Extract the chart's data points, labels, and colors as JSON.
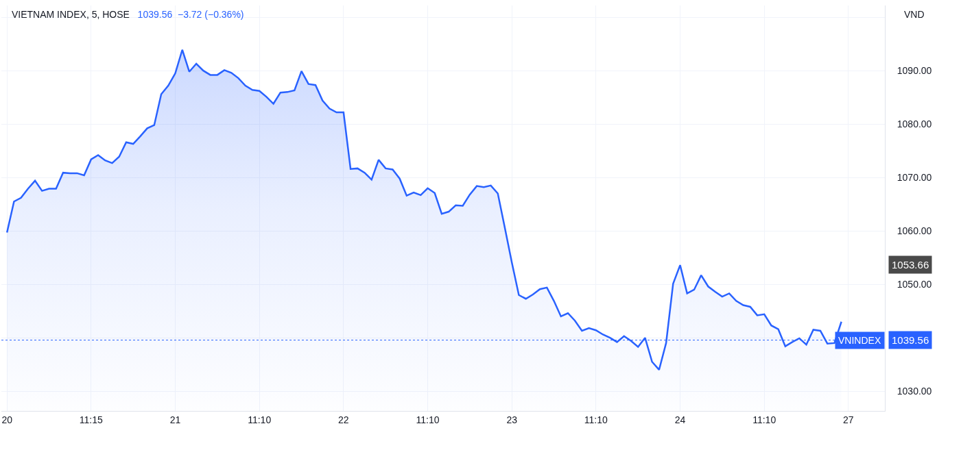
{
  "chart_data": {
    "type": "area",
    "title": "VIETNAM INDEX, 5, HOSE",
    "subtitle": "1039.56  −3.72 (−0.36%)",
    "ylabel": "VND",
    "categories": [
      "20",
      null,
      null,
      null,
      null,
      null,
      null,
      null,
      null,
      null,
      null,
      null,
      "11:15",
      null,
      null,
      null,
      null,
      null,
      null,
      null,
      null,
      null,
      null,
      null,
      "21",
      null,
      null,
      null,
      null,
      null,
      null,
      null,
      null,
      null,
      null,
      null,
      "11:10",
      null,
      null,
      null,
      null,
      null,
      null,
      null,
      null,
      null,
      null,
      null,
      "22",
      null,
      null,
      null,
      null,
      null,
      null,
      null,
      null,
      null,
      null,
      null,
      "11:10",
      null,
      null,
      null,
      null,
      null,
      null,
      null,
      null,
      null,
      null,
      null,
      "23",
      null,
      null,
      null,
      null,
      null,
      null,
      null,
      null,
      null,
      null,
      null,
      "11:10",
      null,
      null,
      null,
      null,
      null,
      null,
      null,
      null,
      null,
      null,
      null,
      "24",
      null,
      null,
      null,
      null,
      null,
      null,
      null,
      null,
      null,
      null,
      null,
      "11:10",
      null,
      null,
      null,
      null,
      null,
      null,
      null,
      null,
      null,
      null,
      null,
      "27"
    ],
    "series": [
      {
        "name": "VNINDEX",
        "color": "#2962ff",
        "values": [
          1059.7,
          1065.5,
          1066.2,
          1067.9,
          1069.4,
          1067.5,
          1067.9,
          1067.9,
          1070.9,
          1070.8,
          1070.8,
          1070.4,
          1073.4,
          1074.2,
          1073.2,
          1072.7,
          1073.9,
          1076.6,
          1076.3,
          1077.7,
          1079.2,
          1079.8,
          1085.6,
          1087.2,
          1089.5,
          1093.9,
          1089.8,
          1091.3,
          1090.0,
          1089.2,
          1089.2,
          1090.1,
          1089.6,
          1088.6,
          1087.2,
          1086.4,
          1086.2,
          1085.1,
          1083.8,
          1085.9,
          1086.0,
          1086.3,
          1089.9,
          1087.5,
          1087.3,
          1084.4,
          1082.9,
          1082.2,
          1082.2,
          1071.6,
          1071.7,
          1070.9,
          1069.6,
          1073.3,
          1071.7,
          1071.5,
          1069.8,
          1066.6,
          1067.2,
          1066.7,
          1068.0,
          1067.1,
          1063.2,
          1063.6,
          1064.8,
          1064.7,
          1066.8,
          1068.4,
          1068.2,
          1068.5,
          1067.0,
          1060.6,
          1054.1,
          1048.0,
          1047.3,
          1048.1,
          1049.1,
          1049.4,
          1046.9,
          1044.0,
          1044.6,
          1043.2,
          1041.3,
          1041.8,
          1041.4,
          1040.6,
          1040.0,
          1039.2,
          1040.3,
          1039.4,
          1038.3,
          1040.0,
          1035.5,
          1034.0,
          1039.0,
          1050.1,
          1053.6,
          1048.3,
          1049.0,
          1051.7,
          1049.6,
          1048.6,
          1047.7,
          1048.3,
          1046.9,
          1046.1,
          1045.8,
          1044.2,
          1044.4,
          1042.3,
          1041.6,
          1038.4,
          1039.2,
          1039.9,
          1038.7,
          1041.5,
          1041.3,
          1038.9,
          1039.0,
          1043.0,
          null
        ]
      }
    ],
    "ylim": [
      1026.3,
      1102.2
    ],
    "yticks": [
      {
        "value": 1030,
        "label": "1030.00"
      },
      {
        "value": 1040,
        "label": null
      },
      {
        "value": 1050,
        "label": "1050.00"
      },
      {
        "value": 1060,
        "label": "1060.00"
      },
      {
        "value": 1070,
        "label": "1070.00"
      },
      {
        "value": 1080,
        "label": "1080.00"
      },
      {
        "value": 1090,
        "label": "1090.00"
      },
      {
        "value": 1100,
        "label": null
      }
    ],
    "ref_lines": [
      {
        "axis": "y",
        "value": 1039.56,
        "label": "1039.56",
        "color": "#2962ff",
        "line_style": "dotted"
      }
    ],
    "annotations": [
      "1053.66"
    ],
    "grid": true,
    "legend": false,
    "marker": "none",
    "line_style": "solid"
  }
}
